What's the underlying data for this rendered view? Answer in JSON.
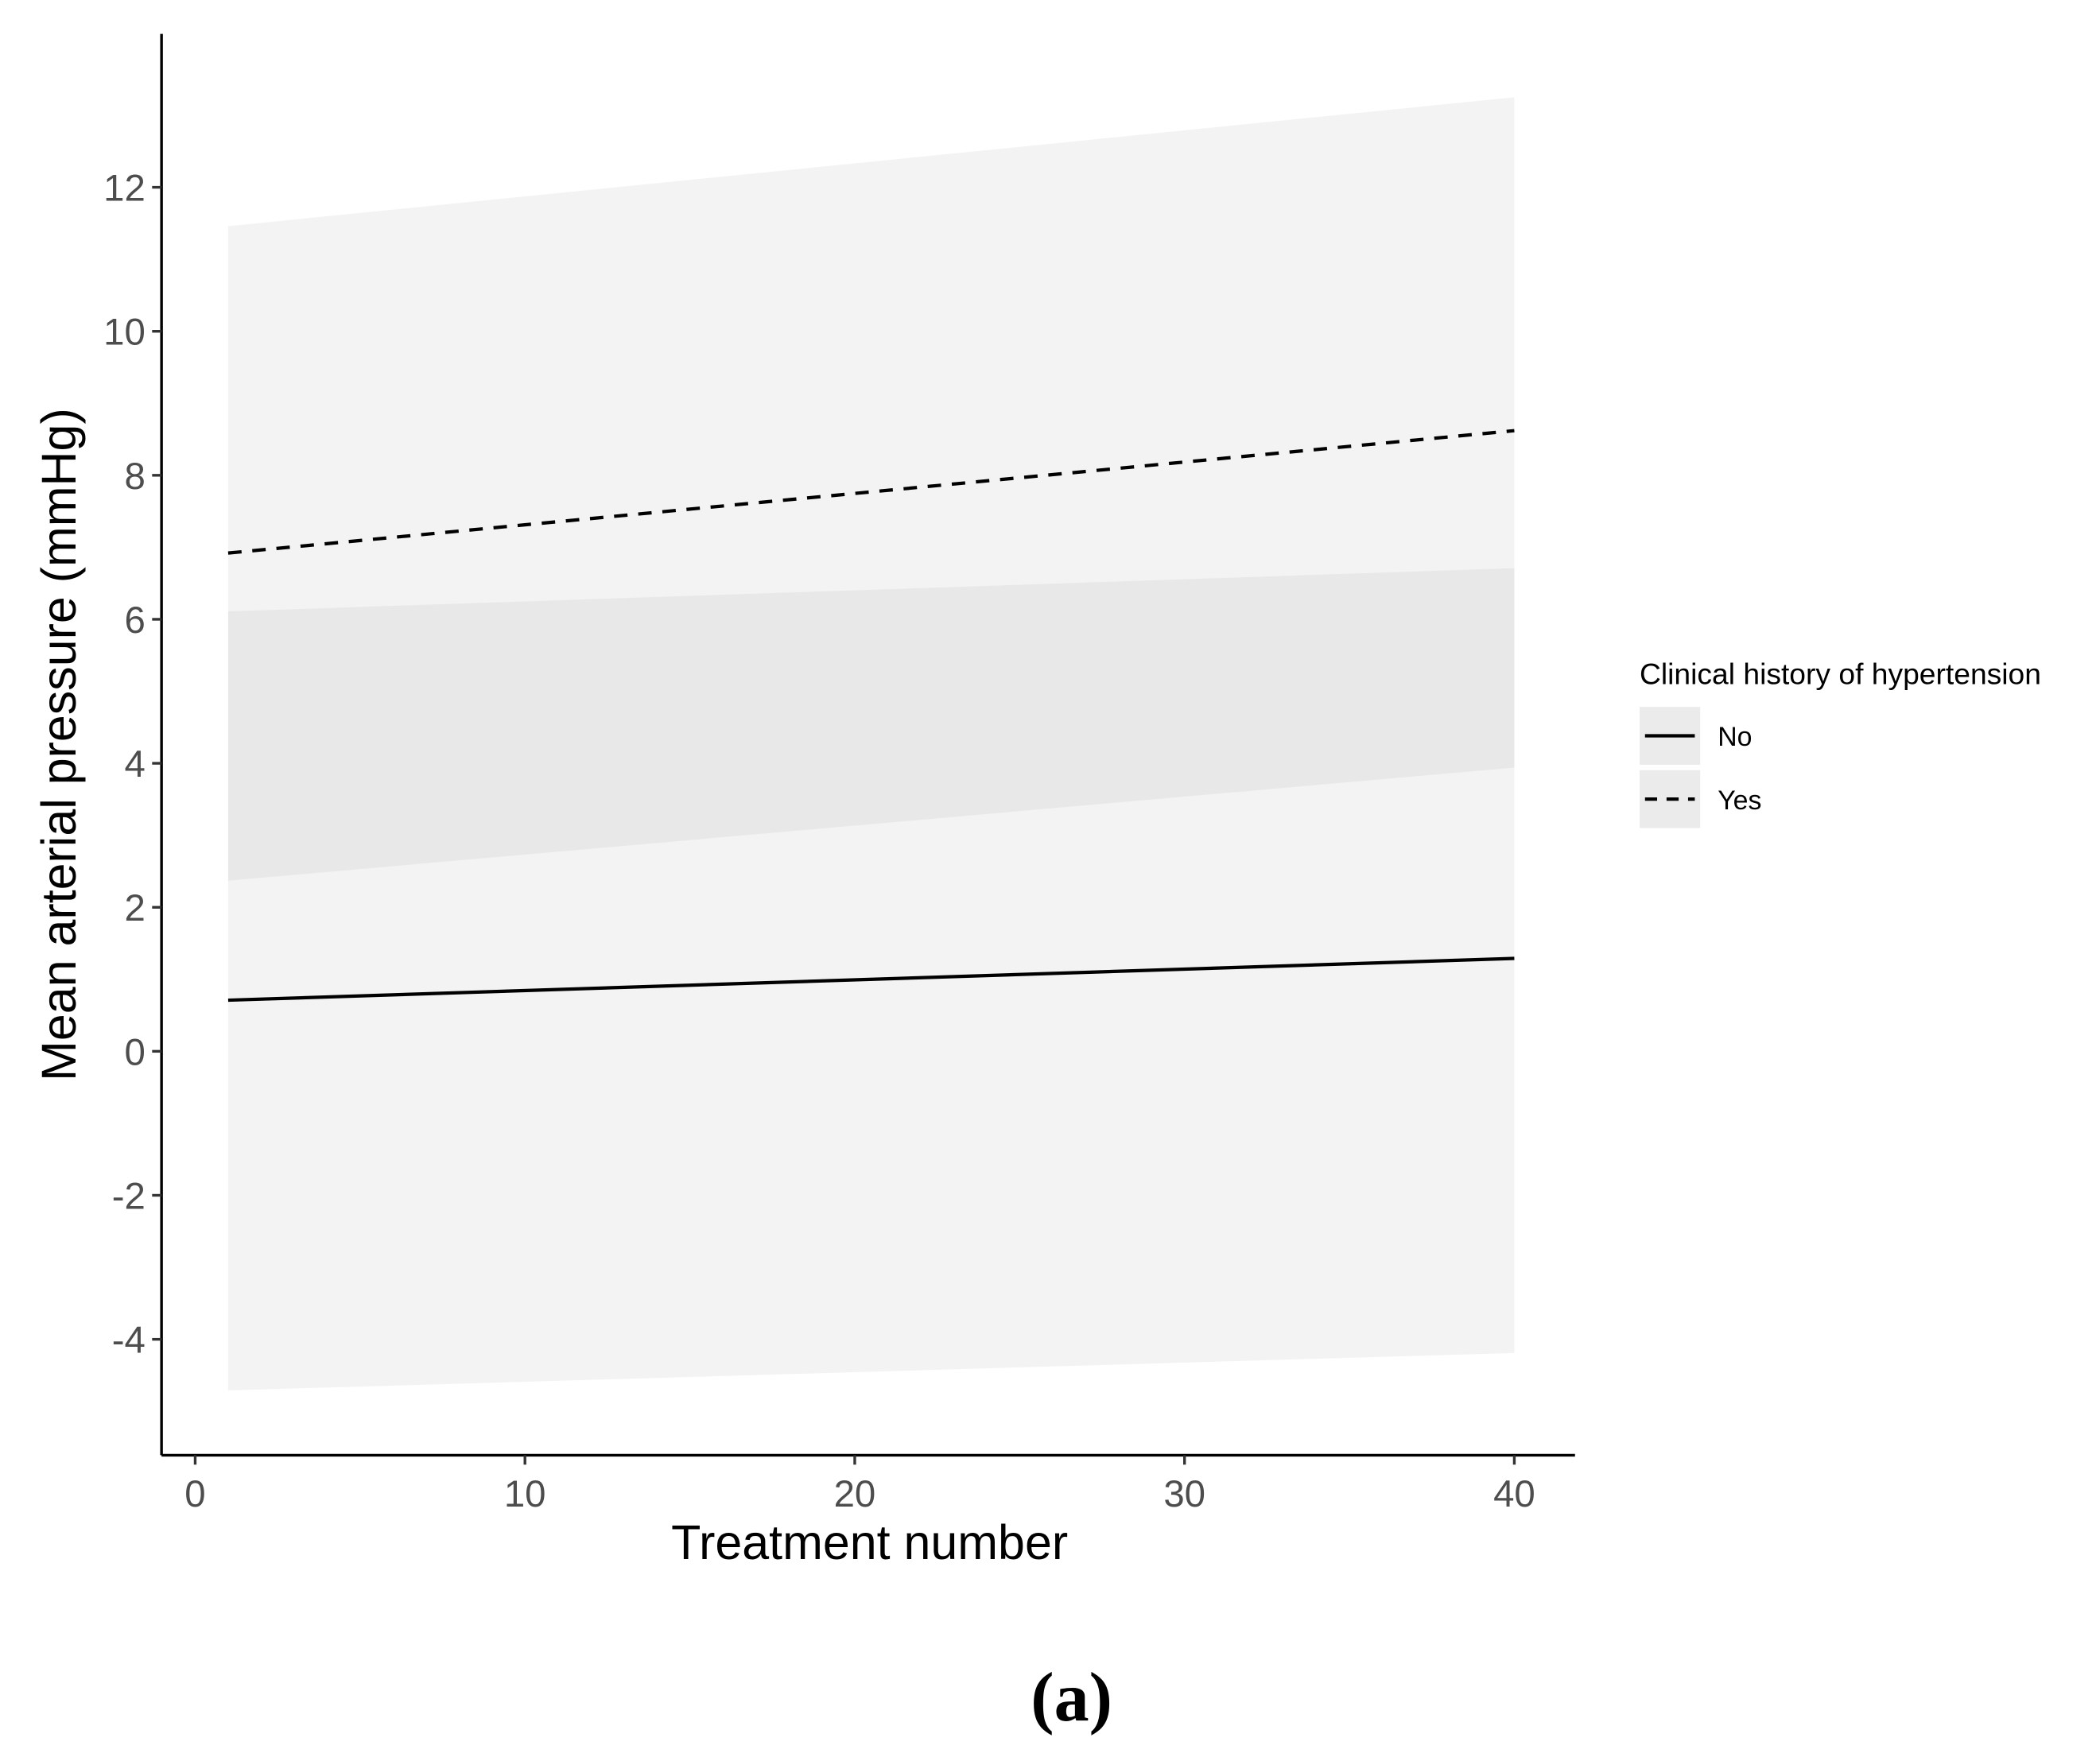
{
  "chart_data": {
    "type": "line",
    "x_label": "Treatment number",
    "y_label": "Mean arterial pressure (mmHg)",
    "caption": "(a)",
    "legend_title": "Clinical history of hypertension",
    "legend_position": "right",
    "x": [
      1,
      40
    ],
    "series": [
      {
        "name": "No",
        "color": "#000000",
        "linestyle": "solid",
        "ribbon_color": "#999999",
        "values": [
          0.71,
          1.29
        ],
        "lower": [
          -4.71,
          -4.19
        ],
        "upper": [
          6.11,
          6.71
        ]
      },
      {
        "name": "Yes",
        "color": "#000000",
        "linestyle": "dashed",
        "ribbon_color": "#999999",
        "values": [
          6.92,
          8.62
        ],
        "lower": [
          2.37,
          3.94
        ],
        "upper": [
          11.46,
          13.25
        ]
      }
    ],
    "xlim": [
      -1.02,
      41.84
    ],
    "ylim": [
      -5.61,
      14.13
    ],
    "xticks": [
      0,
      10,
      20,
      30,
      40
    ],
    "yticks": [
      -4,
      -2,
      0,
      2,
      4,
      6,
      8,
      10,
      12
    ],
    "grid": false
  }
}
